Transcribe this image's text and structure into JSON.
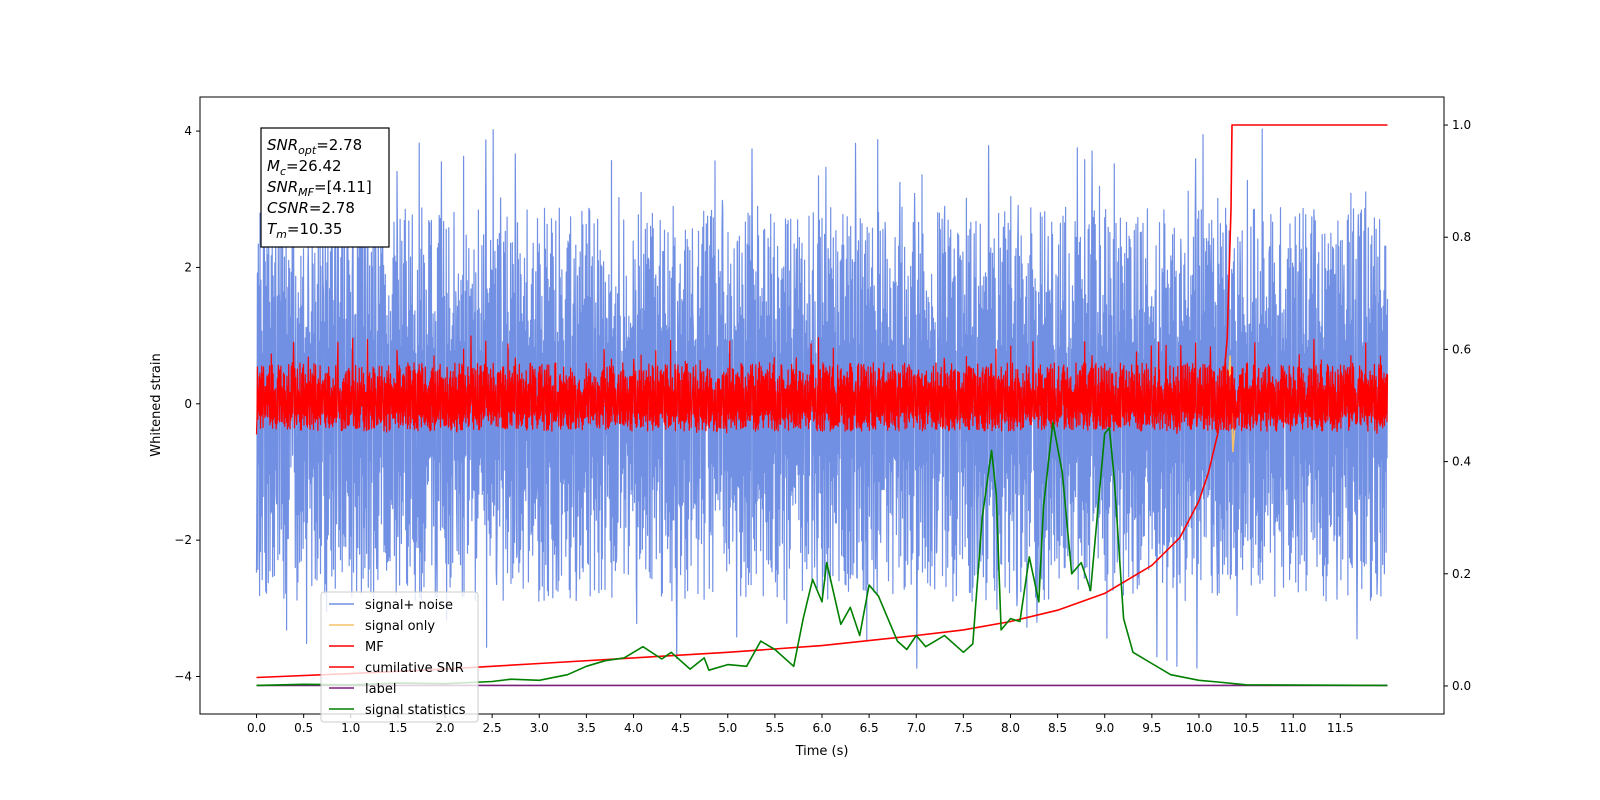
{
  "chart_data": {
    "type": "line",
    "xlabel": "Time (s)",
    "ylabel": "Whitened strain",
    "xlim": [
      -0.6,
      12.6
    ],
    "ylim_left": [
      -4.55,
      4.5
    ],
    "ylim_right": [
      -0.05,
      1.05
    ],
    "x_ticks": [
      "0.0",
      "0.5",
      "1.0",
      "1.5",
      "2.0",
      "2.5",
      "3.0",
      "3.5",
      "4.0",
      "4.5",
      "5.0",
      "5.5",
      "6.0",
      "6.5",
      "7.0",
      "7.5",
      "8.0",
      "8.5",
      "9.0",
      "9.5",
      "10.0",
      "10.5",
      "11.0",
      "11.5"
    ],
    "y_ticks_left": [
      "4",
      "2",
      "0",
      "−2",
      "−4"
    ],
    "y_ticks_right": [
      "1.0",
      "0.8",
      "0.6",
      "0.4",
      "0.2",
      "0.0"
    ],
    "grid": false,
    "legend_position": "lower-left",
    "annotation_lines": [
      {
        "main": "SNR",
        "sub": "opt",
        "rest": "=2.78"
      },
      {
        "main": "M",
        "sub": "c",
        "rest": "=26.42"
      },
      {
        "main": "SNR",
        "sub": "MF",
        "rest": "=[4.11]"
      },
      {
        "main": "CSNR",
        "sub": "",
        "rest": "=2.78"
      },
      {
        "main": "T",
        "sub": "m",
        "rest": "=10.35"
      }
    ],
    "series": [
      {
        "name": "signal+ noise",
        "color": "#7190e4",
        "axis": "left",
        "kind": "noise",
        "x_range": [
          0.0,
          12.0
        ],
        "center": 0.0,
        "envelope_pos": 2.9,
        "envelope_neg": -2.9,
        "max": 4.05,
        "min": -3.9
      },
      {
        "name": "signal only",
        "color": "#f5c16c",
        "axis": "left",
        "kind": "spike",
        "x": [
          0.0,
          10.3,
          10.33,
          10.36,
          10.4,
          12.0
        ],
        "y": [
          0.0,
          0.0,
          0.7,
          -0.7,
          0.0,
          0.0
        ]
      },
      {
        "name": "MF",
        "color": "#ff0000",
        "axis": "left",
        "kind": "noise",
        "x_range": [
          0.0,
          12.0
        ],
        "center": 0.0,
        "envelope_pos": 0.6,
        "envelope_neg": -0.4,
        "max": 1.0,
        "min": -0.45
      },
      {
        "name": "cumilative SNR",
        "color": "#ff0000",
        "axis": "right",
        "kind": "line",
        "x": [
          0.0,
          1.0,
          2.0,
          3.0,
          4.0,
          5.0,
          6.0,
          7.0,
          7.5,
          8.0,
          8.5,
          9.0,
          9.5,
          9.8,
          10.0,
          10.1,
          10.2,
          10.25,
          10.3,
          10.34,
          10.35,
          12.0
        ],
        "y": [
          0.015,
          0.022,
          0.03,
          0.04,
          0.05,
          0.06,
          0.072,
          0.09,
          0.1,
          0.115,
          0.135,
          0.165,
          0.215,
          0.265,
          0.33,
          0.38,
          0.45,
          0.52,
          0.62,
          0.85,
          1.0,
          1.0
        ]
      },
      {
        "name": "label",
        "color": "#7a1f7a",
        "axis": "right",
        "kind": "line",
        "x": [
          0.0,
          12.0
        ],
        "y": [
          0.001,
          0.001
        ]
      },
      {
        "name": "signal statistics",
        "color": "#008000",
        "axis": "right",
        "kind": "line",
        "x": [
          0.0,
          0.5,
          1.0,
          1.5,
          2.0,
          2.5,
          2.7,
          3.0,
          3.3,
          3.5,
          3.7,
          3.9,
          4.1,
          4.3,
          4.4,
          4.6,
          4.75,
          4.8,
          5.0,
          5.2,
          5.35,
          5.5,
          5.7,
          5.8,
          5.9,
          6.0,
          6.05,
          6.2,
          6.3,
          6.4,
          6.5,
          6.6,
          6.8,
          6.9,
          7.0,
          7.1,
          7.3,
          7.5,
          7.6,
          7.7,
          7.8,
          7.85,
          7.9,
          8.0,
          8.1,
          8.2,
          8.3,
          8.35,
          8.45,
          8.55,
          8.65,
          8.75,
          8.85,
          9.0,
          9.05,
          9.1,
          9.2,
          9.3,
          9.5,
          9.7,
          10.0,
          10.2,
          10.5,
          12.0
        ],
        "y": [
          0.001,
          0.003,
          0.002,
          0.005,
          0.004,
          0.008,
          0.012,
          0.01,
          0.02,
          0.035,
          0.045,
          0.05,
          0.07,
          0.048,
          0.06,
          0.03,
          0.05,
          0.028,
          0.038,
          0.035,
          0.08,
          0.065,
          0.035,
          0.12,
          0.19,
          0.15,
          0.22,
          0.11,
          0.14,
          0.09,
          0.18,
          0.16,
          0.08,
          0.065,
          0.09,
          0.07,
          0.09,
          0.06,
          0.075,
          0.3,
          0.42,
          0.34,
          0.1,
          0.12,
          0.115,
          0.23,
          0.15,
          0.32,
          0.47,
          0.38,
          0.2,
          0.22,
          0.17,
          0.45,
          0.46,
          0.37,
          0.12,
          0.06,
          0.04,
          0.02,
          0.01,
          0.007,
          0.002,
          0.001
        ]
      }
    ]
  }
}
